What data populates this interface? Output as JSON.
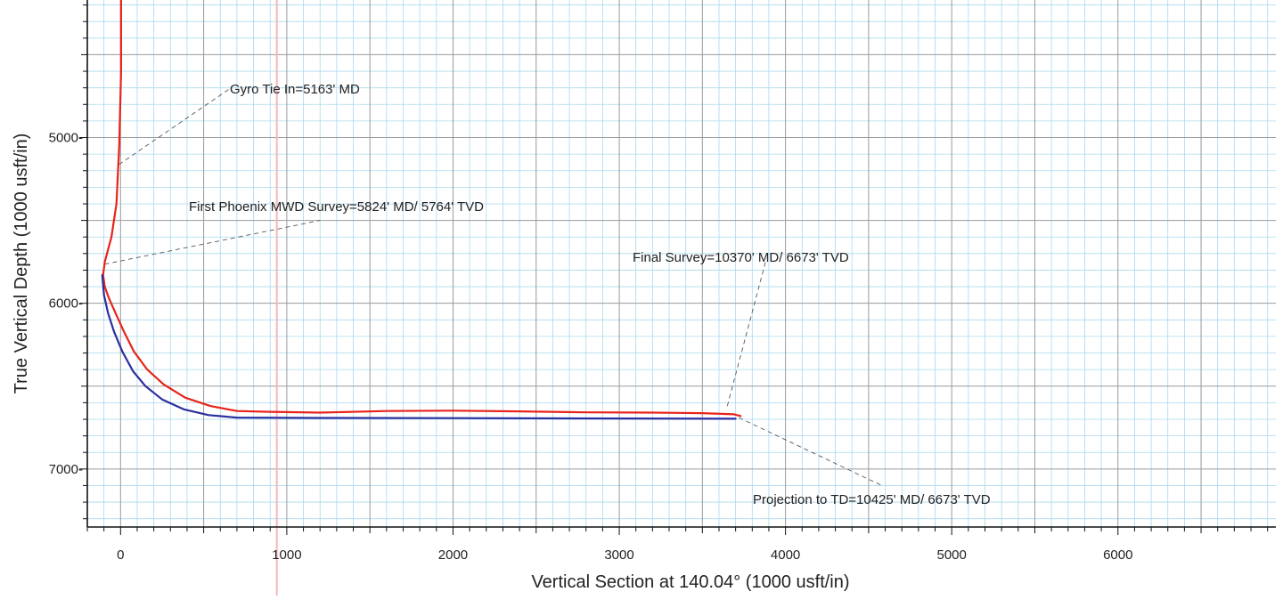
{
  "chart_data": {
    "type": "line",
    "xlabel": "Vertical Section at 140.04° (1000 usft/in)",
    "ylabel": "True Vertical Depth (1000 usft/in)",
    "xlim": [
      -200,
      6950
    ],
    "ylim": [
      4170,
      7350
    ],
    "y_inverted": true,
    "grid": true,
    "x_ticks": [
      0,
      1000,
      2000,
      3000,
      4000,
      5000,
      6000
    ],
    "y_ticks": [
      5000,
      6000,
      7000
    ],
    "colors": {
      "actual": "#e8231b",
      "plan": "#2a2f9e",
      "major_grid": "#9a9a9a",
      "minor_grid": "#a9d9ee",
      "annotation": "#555555",
      "highlight_line": "#f5b7bd"
    },
    "series": [
      {
        "key": "actual",
        "x": [
          3,
          3,
          -8,
          -15,
          -25,
          -55,
          -95,
          -105,
          -95,
          -70,
          -30,
          20,
          80,
          160,
          260,
          390,
          540,
          700,
          900,
          1200,
          1600,
          2000,
          2400,
          2800,
          3200,
          3500,
          3690,
          3730
        ],
        "y": [
          4170,
          4600,
          5050,
          5200,
          5400,
          5600,
          5750,
          5830,
          5900,
          5970,
          6060,
          6170,
          6290,
          6400,
          6490,
          6570,
          6620,
          6650,
          6655,
          6660,
          6650,
          6648,
          6652,
          6658,
          6660,
          6663,
          6670,
          6680
        ]
      },
      {
        "key": "plan",
        "x": [
          -110,
          -100,
          -75,
          -40,
          10,
          75,
          150,
          250,
          380,
          530,
          700,
          1200,
          2000,
          3000,
          3700
        ],
        "y": [
          5830,
          5950,
          6060,
          6170,
          6290,
          6410,
          6500,
          6580,
          6640,
          6675,
          6690,
          6692,
          6693,
          6695,
          6697
        ]
      }
    ],
    "annotations": [
      {
        "text": "Gyro Tie In=5163' MD",
        "point": [
          -10,
          5163
        ],
        "label_pos": [
          650,
          4710
        ]
      },
      {
        "text": "First Phoenix MWD Survey=5824' MD/ 5764' TVD",
        "point": [
          -95,
          5764
        ],
        "label_pos": [
          1200,
          5500
        ]
      },
      {
        "text": "Final Survey=10370' MD/ 6673' TVD",
        "point": [
          3650,
          6620
        ],
        "label_pos": [
          3880,
          5750
        ]
      },
      {
        "text": "Projection to TD=10425' MD/ 6673' TVD",
        "point": [
          3720,
          6690
        ],
        "label_pos": [
          4580,
          7100
        ]
      }
    ],
    "highlight_x": 940
  }
}
